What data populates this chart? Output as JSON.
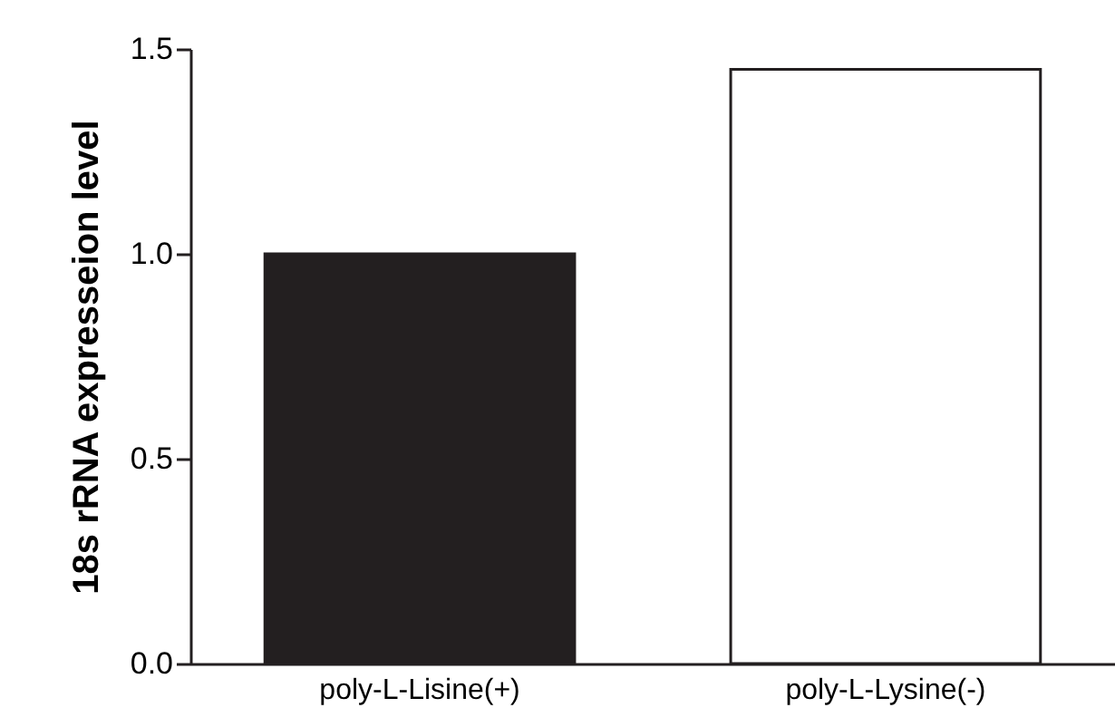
{
  "chart_data": {
    "type": "bar",
    "ylabel": "18s rRNA expresseion level",
    "categories": [
      "poly-L-Lisine(+)",
      "poly-L-Lysine(-)"
    ],
    "values": [
      1.0,
      1.45
    ],
    "colors": [
      "#231f20",
      "#ffffff"
    ],
    "ylim": [
      0,
      1.5
    ],
    "yticks": [
      {
        "value": 0,
        "label": "0.0"
      },
      {
        "value": 0.5,
        "label": "0.5"
      },
      {
        "value": 1,
        "label": "1.0"
      },
      {
        "value": 1.5,
        "label": "1.5"
      }
    ],
    "grid": false
  }
}
